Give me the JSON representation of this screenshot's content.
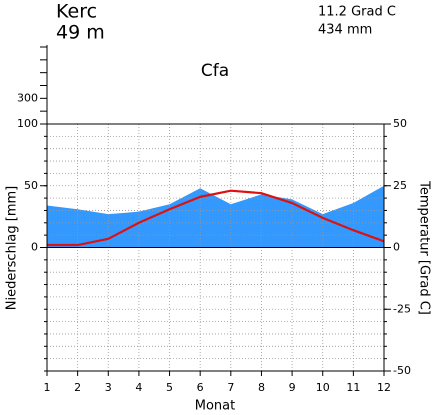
{
  "chart_data": {
    "type": "climate",
    "station": "Kerc",
    "elevation": "49 m",
    "mean_temperature": "11.2 Grad C",
    "annual_precipitation": "434 mm",
    "climate_class": "Cfa",
    "ylabel": "Niederschlag [mm]",
    "y2label": "Temperatur [Grad C]",
    "xlabel": "Monat",
    "x": [
      1,
      2,
      3,
      4,
      5,
      6,
      7,
      8,
      9,
      10,
      11,
      12
    ],
    "xlim": [
      1,
      12
    ],
    "xticks": [
      1,
      2,
      3,
      4,
      5,
      6,
      7,
      8,
      9,
      10,
      11,
      12
    ],
    "series": [
      {
        "name": "Niederschlag",
        "color": "#3399ff",
        "values": [
          34,
          31,
          27,
          29,
          35,
          48,
          35,
          43,
          39,
          27,
          36,
          50
        ]
      },
      {
        "name": "Temperatur",
        "color": "#dd1111",
        "axis": "y2",
        "values": [
          1,
          1,
          3.5,
          10,
          15.5,
          20.5,
          23,
          22,
          18,
          12,
          7,
          2.5
        ]
      }
    ],
    "ylim": [
      -100,
      100
    ],
    "yticks": [
      0,
      50,
      100
    ],
    "yminorticks": [
      -100,
      -90,
      -80,
      -70,
      -60,
      -50,
      -40,
      -30,
      -20,
      -10,
      0,
      10,
      20,
      30,
      40,
      50,
      60,
      70,
      80,
      90,
      100
    ],
    "yupperlim": [
      100,
      700
    ],
    "yupperticks": [
      200,
      300,
      400,
      500,
      600,
      700
    ],
    "yupperlabeled": [
      300
    ],
    "y2lim": [
      -50,
      50
    ],
    "y2ticks": [
      50,
      25,
      0,
      -25,
      -50
    ],
    "y2minorticks": [
      -50,
      -45,
      -40,
      -35,
      -30,
      -25,
      -20,
      -15,
      -10,
      -5,
      0,
      5,
      10,
      15,
      20,
      25,
      30,
      35,
      40,
      45,
      50
    ],
    "grid": true
  }
}
